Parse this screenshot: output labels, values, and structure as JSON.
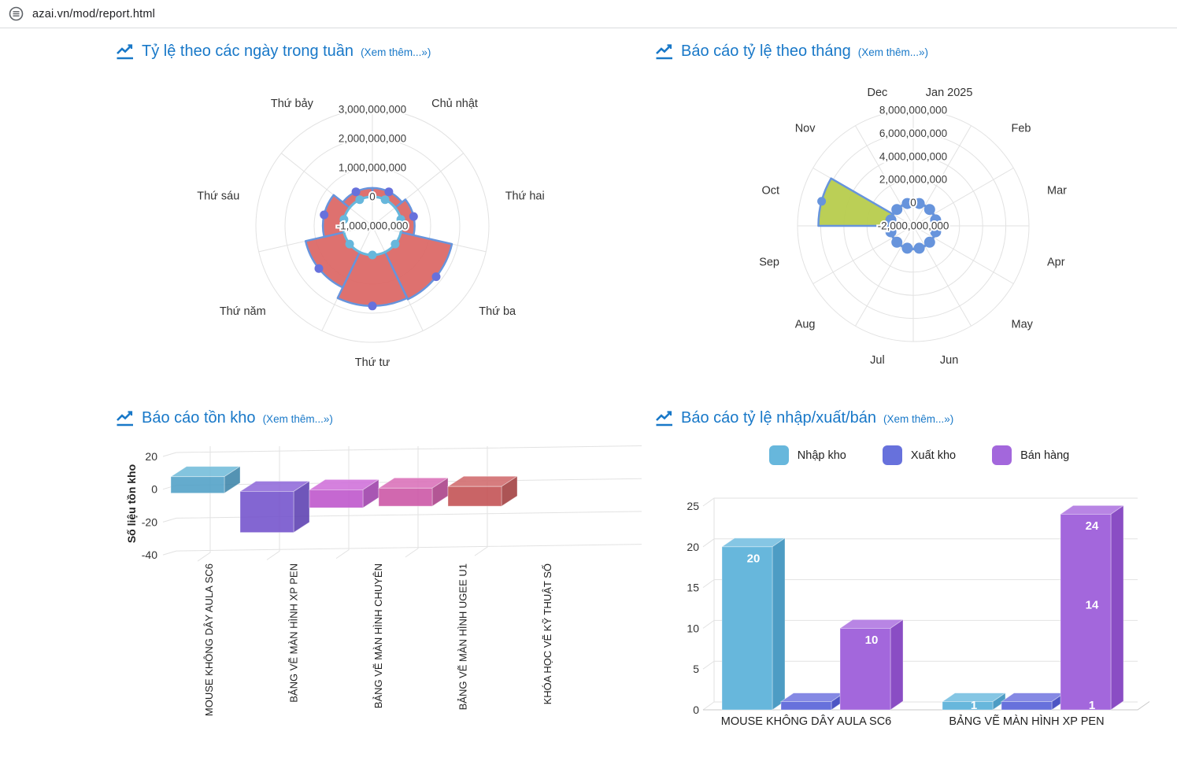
{
  "browser": {
    "url": "azai.vn/mod/report.html",
    "icon": "site-info-icon"
  },
  "colors": {
    "title_blue": "#1878c8",
    "grid": "#e2e2e2",
    "text_dark": "#333333"
  },
  "panels": [
    {
      "title": "Tỷ lệ theo các ngày trong tuần",
      "more_link": "(Xem thêm...»)",
      "title_icon": "chart-line-icon"
    },
    {
      "title": "Báo cáo tỷ lệ theo tháng",
      "more_link": "(Xem thêm...»)",
      "title_icon": "chart-line-icon"
    },
    {
      "title": "Báo cáo tồn kho",
      "more_link": "(Xem thêm...»)",
      "title_icon": "chart-line-icon"
    },
    {
      "title": "Báo cáo tỷ lệ nhập/xuất/bán",
      "more_link": "(Xem thêm...»)",
      "title_icon": "chart-line-icon"
    }
  ],
  "chart_data": [
    {
      "type": "polar_area",
      "title": "Tỷ lệ theo các ngày trong tuần",
      "categories": [
        "Chủ nhật",
        "Thứ hai",
        "Thứ ba",
        "Thứ tư",
        "Thứ năm",
        "Thứ sáu",
        "Thứ bảy"
      ],
      "series": [
        {
          "name": "weekday-values",
          "kind": "area",
          "values": [
            300000000,
            450000000,
            1800000000,
            1750000000,
            1350000000,
            700000000,
            300000000
          ],
          "fill": "#dc6967",
          "stroke": "#6794dc",
          "marker_color": "#6771dc"
        },
        {
          "name": "zero-baseline",
          "kind": "ring",
          "values": [
            0,
            0,
            0,
            0,
            0,
            0,
            0
          ],
          "color": "#67b7dc"
        }
      ],
      "scale": {
        "min": -1000000000,
        "max": 3000000000,
        "step": 1000000000
      },
      "tick_labels": [
        "3,000,000,000",
        "2,000,000,000",
        "1,000,000,000",
        "0",
        "-1,000,000,000"
      ],
      "grid": true,
      "legend_position": "none"
    },
    {
      "type": "polar_area",
      "title": "Báo cáo tỷ lệ theo tháng",
      "categories": [
        "Jan 2025",
        "Feb",
        "Mar",
        "Apr",
        "May",
        "Jun",
        "Jul",
        "Aug",
        "Sep",
        "Oct",
        "Nov",
        "Dec"
      ],
      "series": [
        {
          "name": "month-values",
          "kind": "area",
          "values": [
            0,
            0,
            0,
            0,
            0,
            0,
            0,
            0,
            0,
            6200000000,
            0,
            0
          ],
          "fill": "#b7cc4d",
          "stroke": "#6794dc",
          "marker_color": "#6794dc"
        },
        {
          "name": "zero-baseline",
          "kind": "ring",
          "values": [
            0,
            0,
            0,
            0,
            0,
            0,
            0,
            0,
            0,
            0,
            0,
            0
          ],
          "color": "#6794dc"
        }
      ],
      "scale": {
        "min": -2000000000,
        "max": 8000000000,
        "step": 2000000000
      },
      "tick_labels": [
        "8,000,000,000",
        "6,000,000,000",
        "4,000,000,000",
        "2,000,000,000",
        "0",
        "-2,000,000,000"
      ],
      "grid": true,
      "legend_position": "none"
    },
    {
      "type": "bar",
      "title": "Báo cáo tồn kho",
      "ylabel": "Số liệu tồn kho",
      "categories": [
        "MOUSE KHÔNG DÂY AULA SC6",
        "BẢNG VẼ MÀN HÌNH XP PEN",
        "BẢNG VẼ MÀN HÌNH CHUYÊN",
        "BẢNG VẼ MÀN HÌNH UGEE U1",
        "KHÓA HỌC VẼ KỸ THUẬT SỐ"
      ],
      "values": [
        10,
        -25,
        -11,
        -11,
        -12
      ],
      "yticks": [
        20,
        0,
        -20,
        -40
      ],
      "ylim": [
        -40,
        25
      ],
      "style": "3d-column",
      "bar_colors": [
        {
          "front": "#4f9fc6",
          "top": "#72bcda",
          "side": "#3c84a8"
        },
        {
          "front": "#7251cc",
          "top": "#8f6ad9",
          "side": "#5b3fb0"
        },
        {
          "front": "#bd53cb",
          "top": "#cf70da",
          "side": "#9c3fa9"
        },
        {
          "front": "#cb53a4",
          "top": "#da70b8",
          "side": "#a93f86"
        },
        {
          "front": "#c14f51",
          "top": "#d06a6c",
          "side": "#a03c3e"
        }
      ]
    },
    {
      "type": "bar",
      "title": "Báo cáo tỷ lệ nhập/xuất/bán",
      "categories": [
        "MOUSE KHÔNG DÂY AULA SC6",
        "BẢNG VẼ MÀN HÌNH XP PEN"
      ],
      "yticks": [
        0,
        5,
        10,
        15,
        20,
        25
      ],
      "ylim": [
        0,
        25
      ],
      "style": "3d-column-clustered",
      "legend_position": "top",
      "series": [
        {
          "name": "Nhập kho",
          "color": "#67b7dc",
          "top": "#85c6e4",
          "side": "#4d9cc4",
          "values": [
            20,
            1
          ],
          "labels": [
            [
              {
                "text": "20",
                "at": 18.6
              }
            ],
            [
              {
                "text": "1",
                "at": 0.6
              }
            ]
          ]
        },
        {
          "name": "Xuất kho",
          "color": "#6771dc",
          "top": "#8589e4",
          "side": "#4d55c4",
          "values": [
            1,
            1
          ],
          "labels": [
            [],
            []
          ]
        },
        {
          "name": "Bán hàng",
          "color": "#a367dc",
          "top": "#b885e4",
          "side": "#8a4dc4",
          "values": [
            10,
            24
          ],
          "labels": [
            [
              {
                "text": "10",
                "at": 8.6
              }
            ],
            [
              {
                "text": "24",
                "at": 22.6
              },
              {
                "text": "14",
                "at": 12.9
              },
              {
                "text": "1",
                "at": 0.6
              }
            ]
          ]
        }
      ]
    }
  ]
}
